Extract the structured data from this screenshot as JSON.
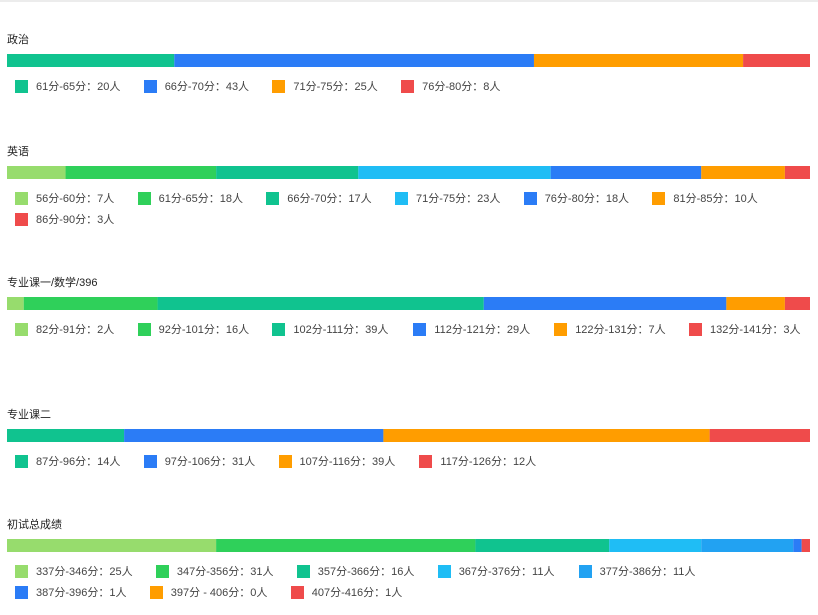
{
  "chart_data": [
    {
      "type": "bar",
      "stacked": true,
      "orientation": "horizontal",
      "title": "政治",
      "series": [
        {
          "name": "61分-65分：20人",
          "values": [
            20
          ],
          "color": "#10c38f"
        },
        {
          "name": "66分-70分：43人",
          "values": [
            43
          ],
          "color": "#2b7cf6"
        },
        {
          "name": "71分-75分：25人",
          "values": [
            25
          ],
          "color": "#ff9d00"
        },
        {
          "name": "76分-80分：8人",
          "values": [
            8
          ],
          "color": "#ef4b4b"
        }
      ]
    },
    {
      "type": "bar",
      "stacked": true,
      "orientation": "horizontal",
      "title": "英语",
      "series": [
        {
          "name": "56分-60分：7人",
          "values": [
            7
          ],
          "color": "#97dc6d"
        },
        {
          "name": "61分-65分：18人",
          "values": [
            18
          ],
          "color": "#2fd05a"
        },
        {
          "name": "66分-70分：17人",
          "values": [
            17
          ],
          "color": "#10c38f"
        },
        {
          "name": "71分-75分：23人",
          "values": [
            23
          ],
          "color": "#1fbdf5"
        },
        {
          "name": "76分-80分：18人",
          "values": [
            18
          ],
          "color": "#2b7cf6"
        },
        {
          "name": "81分-85分：10人",
          "values": [
            10
          ],
          "color": "#ff9d00"
        },
        {
          "name": "86分-90分：3人",
          "values": [
            3
          ],
          "color": "#ef4b4b"
        }
      ]
    },
    {
      "type": "bar",
      "stacked": true,
      "orientation": "horizontal",
      "title": "专业课一/数学/396",
      "series": [
        {
          "name": "82分-91分：2人",
          "values": [
            2
          ],
          "color": "#97dc6d"
        },
        {
          "name": "92分-101分：16人",
          "values": [
            16
          ],
          "color": "#2fd05a"
        },
        {
          "name": "102分-111分：39人",
          "values": [
            39
          ],
          "color": "#10c38f"
        },
        {
          "name": "112分-121分：29人",
          "values": [
            29
          ],
          "color": "#2b7cf6"
        },
        {
          "name": "122分-131分：7人",
          "values": [
            7
          ],
          "color": "#ff9d00"
        },
        {
          "name": "132分-141分：3人",
          "values": [
            3
          ],
          "color": "#ef4b4b"
        }
      ]
    },
    {
      "type": "bar",
      "stacked": true,
      "orientation": "horizontal",
      "title": "专业课二",
      "series": [
        {
          "name": "87分-96分：14人",
          "values": [
            14
          ],
          "color": "#10c38f"
        },
        {
          "name": "97分-106分：31人",
          "values": [
            31
          ],
          "color": "#2b7cf6"
        },
        {
          "name": "107分-116分：39人",
          "values": [
            39
          ],
          "color": "#ff9d00"
        },
        {
          "name": "117分-126分：12人",
          "values": [
            12
          ],
          "color": "#ef4b4b"
        }
      ]
    },
    {
      "type": "bar",
      "stacked": true,
      "orientation": "horizontal",
      "title": "初试总成绩",
      "series": [
        {
          "name": "337分-346分：25人",
          "values": [
            25
          ],
          "color": "#97dc6d"
        },
        {
          "name": "347分-356分：31人",
          "values": [
            31
          ],
          "color": "#2fd05a"
        },
        {
          "name": "357分-366分：16人",
          "values": [
            16
          ],
          "color": "#10c38f"
        },
        {
          "name": "367分-376分：11人",
          "values": [
            11
          ],
          "color": "#1fbdf5"
        },
        {
          "name": "377分-386分：11人",
          "values": [
            11
          ],
          "color": "#22a2f2"
        },
        {
          "name": "387分-396分：1人",
          "values": [
            1
          ],
          "color": "#2b7cf6"
        },
        {
          "name": "397分 - 406分：0人",
          "values": [
            0
          ],
          "color": "#ff9d00"
        },
        {
          "name": "407分-416分：1人",
          "values": [
            1
          ],
          "color": "#ef4b4b"
        }
      ]
    }
  ]
}
